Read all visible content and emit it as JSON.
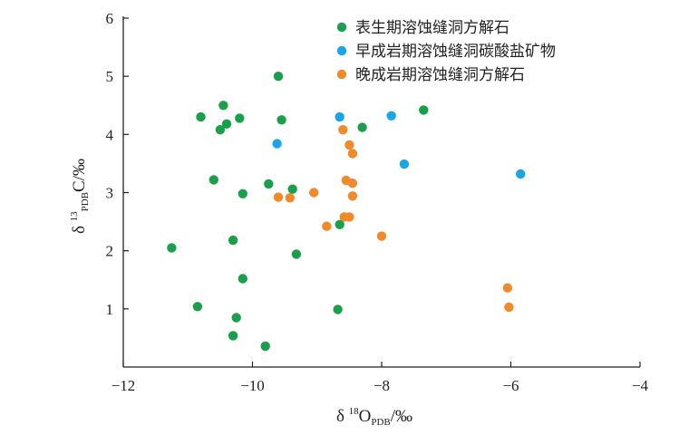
{
  "chart_data": {
    "type": "scatter",
    "title": "",
    "xlabel": "δ 18OPDB/‰",
    "ylabel": "δ 13CPDB/‰",
    "xlabel_parts": {
      "symbol": "δ ",
      "sup": "18",
      "main": "O",
      "sub": "PDB",
      "unit": "/‰"
    },
    "ylabel_parts": {
      "symbol": "δ ",
      "sup": "13",
      "sub": "PDB",
      "main": "C",
      "unit": "/‰"
    },
    "xlim": [
      -12,
      -4
    ],
    "ylim": [
      0,
      6
    ],
    "xticks": [
      -12,
      -10,
      -8,
      -6,
      -4
    ],
    "xtick_labels": [
      "−12",
      "−10",
      "−8",
      "−6",
      "−4"
    ],
    "yticks": [
      1,
      2,
      3,
      4,
      5,
      6
    ],
    "ytick_labels": [
      "1",
      "2",
      "3",
      "4",
      "5",
      "6"
    ],
    "grid": false,
    "legend_position": "top-right",
    "series": [
      {
        "name": "表生期溶蚀缝洞方解石",
        "color": "#1aa04a",
        "points": [
          [
            -9.6,
            5.0
          ],
          [
            -10.45,
            4.5
          ],
          [
            -10.8,
            4.3
          ],
          [
            -10.2,
            4.28
          ],
          [
            -10.4,
            4.18
          ],
          [
            -10.5,
            4.08
          ],
          [
            -9.55,
            4.25
          ],
          [
            -8.3,
            4.12
          ],
          [
            -7.35,
            4.42
          ],
          [
            -10.6,
            3.22
          ],
          [
            -10.15,
            2.98
          ],
          [
            -9.75,
            3.15
          ],
          [
            -9.38,
            3.06
          ],
          [
            -8.65,
            2.45
          ],
          [
            -11.25,
            2.05
          ],
          [
            -10.3,
            2.18
          ],
          [
            -9.32,
            1.94
          ],
          [
            -10.15,
            1.52
          ],
          [
            -10.85,
            1.04
          ],
          [
            -10.25,
            0.85
          ],
          [
            -8.68,
            0.99
          ],
          [
            -10.3,
            0.54
          ],
          [
            -9.8,
            0.36
          ]
        ]
      },
      {
        "name": "早成岩期溶蚀缝洞碳酸盐矿物",
        "color": "#1aa6e6",
        "points": [
          [
            -8.65,
            4.3
          ],
          [
            -7.85,
            4.32
          ],
          [
            -9.62,
            3.84
          ],
          [
            -7.65,
            3.49
          ],
          [
            -5.85,
            3.32
          ]
        ]
      },
      {
        "name": "晚成岩期溶蚀缝洞方解石",
        "color": "#f08a2a",
        "points": [
          [
            -8.6,
            4.08
          ],
          [
            -8.5,
            3.82
          ],
          [
            -8.45,
            3.67
          ],
          [
            -8.55,
            3.21
          ],
          [
            -8.45,
            3.16
          ],
          [
            -9.05,
            3.0
          ],
          [
            -8.45,
            2.94
          ],
          [
            -9.6,
            2.92
          ],
          [
            -9.42,
            2.91
          ],
          [
            -8.58,
            2.58
          ],
          [
            -8.5,
            2.58
          ],
          [
            -8.85,
            2.42
          ],
          [
            -8.0,
            2.25
          ],
          [
            -6.05,
            1.36
          ],
          [
            -6.03,
            1.03
          ]
        ]
      }
    ]
  }
}
